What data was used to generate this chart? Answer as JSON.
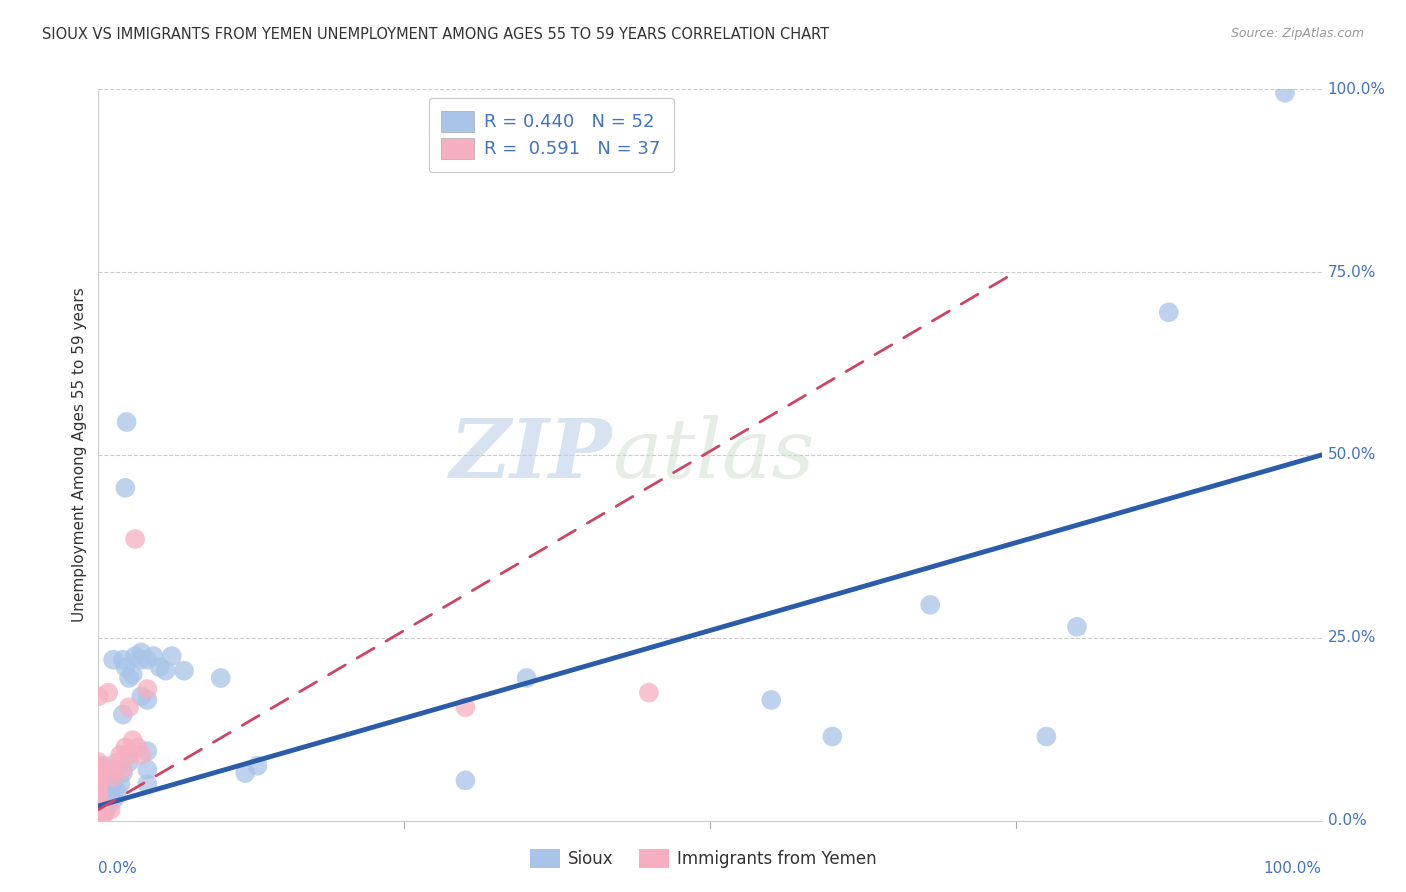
{
  "title": "SIOUX VS IMMIGRANTS FROM YEMEN UNEMPLOYMENT AMONG AGES 55 TO 59 YEARS CORRELATION CHART",
  "source": "Source: ZipAtlas.com",
  "ylabel": "Unemployment Among Ages 55 to 59 years",
  "xlim": [
    0,
    1
  ],
  "ylim": [
    0,
    1
  ],
  "yticks": [
    0.0,
    0.25,
    0.5,
    0.75,
    1.0
  ],
  "yticklabels_right": [
    "0.0%",
    "25.0%",
    "50.0%",
    "75.0%",
    "100.0%"
  ],
  "xticklabels_bottom": [
    "0.0%",
    "100.0%"
  ],
  "watermark_zip": "ZIP",
  "watermark_atlas": "atlas",
  "legend_labels": [
    "Sioux",
    "Immigrants from Yemen"
  ],
  "sioux_color": "#a8c4e8",
  "yemen_color": "#f5afc0",
  "sioux_line_color": "#2a5caa",
  "yemen_line_color": "#cc4466",
  "sioux_R": 0.44,
  "sioux_N": 52,
  "yemen_R": 0.591,
  "yemen_N": 37,
  "sioux_scatter": [
    [
      0.97,
      0.995
    ],
    [
      0.875,
      0.695
    ],
    [
      0.8,
      0.265
    ],
    [
      0.775,
      0.115
    ],
    [
      0.68,
      0.295
    ],
    [
      0.6,
      0.115
    ],
    [
      0.55,
      0.165
    ],
    [
      0.35,
      0.195
    ],
    [
      0.3,
      0.055
    ],
    [
      0.13,
      0.075
    ],
    [
      0.12,
      0.065
    ],
    [
      0.1,
      0.195
    ],
    [
      0.07,
      0.205
    ],
    [
      0.06,
      0.225
    ],
    [
      0.055,
      0.205
    ],
    [
      0.05,
      0.21
    ],
    [
      0.045,
      0.225
    ],
    [
      0.04,
      0.22
    ],
    [
      0.04,
      0.165
    ],
    [
      0.04,
      0.095
    ],
    [
      0.04,
      0.07
    ],
    [
      0.04,
      0.05
    ],
    [
      0.035,
      0.23
    ],
    [
      0.035,
      0.17
    ],
    [
      0.035,
      0.22
    ],
    [
      0.03,
      0.225
    ],
    [
      0.028,
      0.2
    ],
    [
      0.025,
      0.195
    ],
    [
      0.025,
      0.08
    ],
    [
      0.023,
      0.545
    ],
    [
      0.022,
      0.455
    ],
    [
      0.022,
      0.21
    ],
    [
      0.02,
      0.22
    ],
    [
      0.02,
      0.145
    ],
    [
      0.02,
      0.065
    ],
    [
      0.018,
      0.05
    ],
    [
      0.015,
      0.04
    ],
    [
      0.013,
      0.03
    ],
    [
      0.012,
      0.22
    ],
    [
      0.012,
      0.05
    ],
    [
      0.01,
      0.05
    ],
    [
      0.01,
      0.04
    ],
    [
      0.01,
      0.03
    ],
    [
      0.008,
      0.02
    ],
    [
      0.006,
      0.015
    ],
    [
      0.005,
      0.075
    ],
    [
      0.004,
      0.06
    ],
    [
      0.003,
      0.04
    ],
    [
      0.002,
      0.025
    ],
    [
      0.001,
      0.02
    ],
    [
      0.001,
      0.01
    ],
    [
      0.0,
      0.01
    ]
  ],
  "yemen_scatter": [
    [
      0.0,
      0.0
    ],
    [
      0.0,
      0.005
    ],
    [
      0.0,
      0.01
    ],
    [
      0.0,
      0.015
    ],
    [
      0.0,
      0.02
    ],
    [
      0.0,
      0.025
    ],
    [
      0.0,
      0.03
    ],
    [
      0.0,
      0.035
    ],
    [
      0.0,
      0.04
    ],
    [
      0.0,
      0.045
    ],
    [
      0.0,
      0.05
    ],
    [
      0.0,
      0.055
    ],
    [
      0.0,
      0.06
    ],
    [
      0.0,
      0.065
    ],
    [
      0.0,
      0.07
    ],
    [
      0.0,
      0.075
    ],
    [
      0.0,
      0.08
    ],
    [
      0.003,
      0.005
    ],
    [
      0.005,
      0.01
    ],
    [
      0.008,
      0.175
    ],
    [
      0.01,
      0.015
    ],
    [
      0.012,
      0.06
    ],
    [
      0.013,
      0.07
    ],
    [
      0.015,
      0.08
    ],
    [
      0.018,
      0.09
    ],
    [
      0.02,
      0.07
    ],
    [
      0.022,
      0.1
    ],
    [
      0.025,
      0.09
    ],
    [
      0.025,
      0.155
    ],
    [
      0.028,
      0.11
    ],
    [
      0.03,
      0.385
    ],
    [
      0.032,
      0.1
    ],
    [
      0.035,
      0.09
    ],
    [
      0.04,
      0.18
    ],
    [
      0.3,
      0.155
    ],
    [
      0.45,
      0.175
    ],
    [
      0.0,
      0.17
    ]
  ],
  "sioux_trend_x": [
    0.0,
    1.0
  ],
  "sioux_trend_y": [
    0.02,
    0.5
  ],
  "yemen_trend_x": [
    0.0,
    0.75
  ],
  "yemen_trend_y": [
    0.015,
    0.75
  ]
}
